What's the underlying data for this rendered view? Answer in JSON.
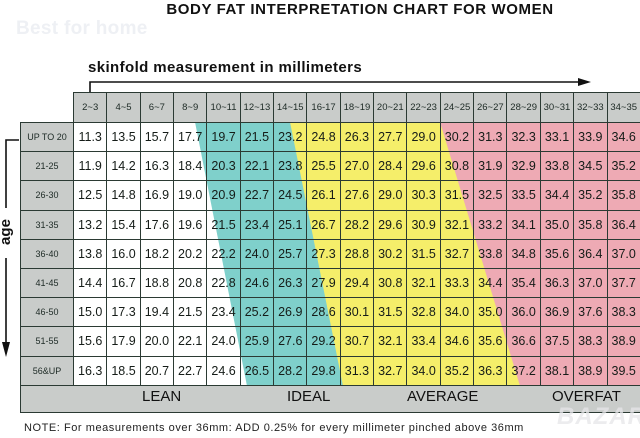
{
  "header": {
    "title": "BODY FAT INTERPRETATION CHART FOR WOMEN",
    "watermark": "Best for home",
    "corner_watermark": "BAZAR"
  },
  "axes": {
    "x_label": "skinfold measurement in millimeters",
    "y_label": "age"
  },
  "colors": {
    "lean": "#ffffff",
    "ideal": "#7fd0cb",
    "average": "#f5ee6a",
    "overfat": "#eeaab4",
    "header_grey": "#c9ccca",
    "grid_line": "#2b3a33"
  },
  "zones": {
    "labels": [
      "LEAN",
      "IDEAL",
      "AVERAGE",
      "OVERFAT"
    ]
  },
  "note": "NOTE: For measurements over 36mm: ADD 0.25% for every millimeter pinched above 36mm",
  "chart_data": {
    "type": "table",
    "title": "BODY FAT INTERPRETATION CHART FOR WOMEN",
    "xlabel": "skinfold measurement in millimeters",
    "ylabel": "age",
    "columns": [
      "2~3",
      "4~5",
      "6~7",
      "8~9",
      "10~11",
      "12~13",
      "14~15",
      "16-17",
      "18~19",
      "20~21",
      "22~23",
      "24~25",
      "26~27",
      "28~29",
      "30~31",
      "32~33",
      "34~35"
    ],
    "rows": [
      "UP TO 20",
      "21-25",
      "26-30",
      "31-35",
      "36-40",
      "41-45",
      "46-50",
      "51-55",
      "56&UP"
    ],
    "values": [
      [
        "11.3",
        "13.5",
        "15.7",
        "17.7",
        "19.7",
        "21.5",
        "23.2",
        "24.8",
        "26.3",
        "27.7",
        "29.0",
        "30.2",
        "31.3",
        "32.3",
        "33.1",
        "33.9",
        "34.6"
      ],
      [
        "11.9",
        "14.2",
        "16.3",
        "18.4",
        "20.3",
        "22.1",
        "23.8",
        "25.5",
        "27.0",
        "28.4",
        "29.6",
        "30.8",
        "31.9",
        "32.9",
        "33.8",
        "34.5",
        "35.2"
      ],
      [
        "12.5",
        "14.8",
        "16.9",
        "19.0",
        "20.9",
        "22.7",
        "24.5",
        "26.1",
        "27.6",
        "29.0",
        "30.3",
        "31.5",
        "32.5",
        "33.5",
        "34.4",
        "35.2",
        "35.8"
      ],
      [
        "13.2",
        "15.4",
        "17.6",
        "19.6",
        "21.5",
        "23.4",
        "25.1",
        "26.7",
        "28.2",
        "29.6",
        "30.9",
        "32.1",
        "33.2",
        "34.1",
        "35.0",
        "35.8",
        "36.4"
      ],
      [
        "13.8",
        "16.0",
        "18.2",
        "20.2",
        "22.2",
        "24.0",
        "25.7",
        "27.3",
        "28.8",
        "30.2",
        "31.5",
        "32.7",
        "33.8",
        "34.8",
        "35.6",
        "36.4",
        "37.0"
      ],
      [
        "14.4",
        "16.7",
        "18.8",
        "20.8",
        "22.8",
        "24.6",
        "26.3",
        "27.9",
        "29.4",
        "30.8",
        "32.1",
        "33.3",
        "34.4",
        "35.4",
        "36.3",
        "37.0",
        "37.7"
      ],
      [
        "15.0",
        "17.3",
        "19.4",
        "21.5",
        "23.4",
        "25.2",
        "26.9",
        "28.6",
        "30.1",
        "31.5",
        "32.8",
        "34.0",
        "35.0",
        "36.0",
        "36.9",
        "37.6",
        "38.3"
      ],
      [
        "15.6",
        "17.9",
        "20.0",
        "22.1",
        "24.0",
        "25.9",
        "27.6",
        "29.2",
        "30.7",
        "32.1",
        "33.4",
        "34.6",
        "35.6",
        "36.6",
        "37.5",
        "38.3",
        "38.9"
      ],
      [
        "16.3",
        "18.5",
        "20.7",
        "22.7",
        "24.6",
        "26.5",
        "28.2",
        "29.8",
        "31.3",
        "32.7",
        "34.0",
        "35.2",
        "36.3",
        "37.2",
        "38.1",
        "38.9",
        "39.5"
      ]
    ],
    "zones": [
      "LEAN",
      "IDEAL",
      "AVERAGE",
      "OVERFAT"
    ],
    "legend_position": "bottom"
  }
}
